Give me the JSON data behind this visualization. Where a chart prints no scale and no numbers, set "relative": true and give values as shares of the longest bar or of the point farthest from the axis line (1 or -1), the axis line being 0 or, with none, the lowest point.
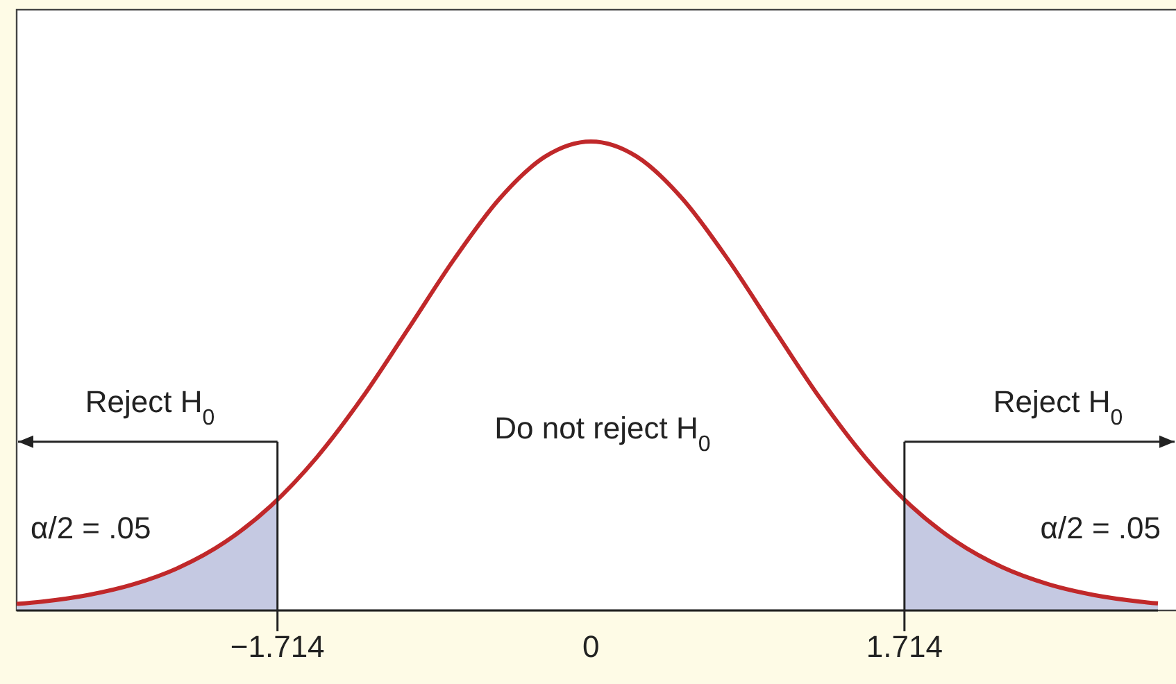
{
  "chart_data": {
    "type": "line",
    "relative": true,
    "marker": "none",
    "line_style": "solid",
    "xlim": [
      -3.14,
      3.1
    ],
    "xticks": [
      {
        "value": -1.714,
        "label": "−1.714"
      },
      0,
      1.714
    ],
    "series": [
      {
        "type": "area",
        "color": "#c5c9e2",
        "x": [
          -3.14,
          -3,
          -2.75,
          -2.5,
          -2.25,
          -2,
          -1.75,
          -1.714
        ],
        "values": [
          0.014,
          0.019,
          0.033,
          0.056,
          0.092,
          0.146,
          0.223,
          0.236
        ]
      },
      {
        "type": "area",
        "color": "#c5c9e2",
        "x": [
          1.714,
          1.75,
          2,
          2.25,
          2.5,
          2.75,
          3,
          3.1
        ],
        "values": [
          0.236,
          0.223,
          0.146,
          0.092,
          0.056,
          0.033,
          0.019,
          0.015
        ]
      },
      {
        "color": "#c0282a",
        "x": [
          -3.14,
          -3,
          -2.75,
          -2.5,
          -2.25,
          -2,
          -1.75,
          -1.5,
          -1.25,
          -1,
          -0.75,
          -0.5,
          -0.25,
          0,
          0.25,
          0.5,
          0.75,
          1,
          1.25,
          1.5,
          1.75,
          2,
          2.25,
          2.5,
          2.75,
          3,
          3.1
        ],
        "values": [
          0.014,
          0.019,
          0.033,
          0.056,
          0.092,
          0.146,
          0.223,
          0.326,
          0.454,
          0.6,
          0.748,
          0.878,
          0.968,
          1,
          0.968,
          0.878,
          0.748,
          0.6,
          0.454,
          0.326,
          0.223,
          0.146,
          0.092,
          0.056,
          0.033,
          0.019,
          0.015
        ]
      }
    ],
    "ref_lines": [
      {
        "axis": "x",
        "value": -1.714,
        "color": "#222222"
      },
      {
        "axis": "x",
        "value": 1.714,
        "color": "#222222"
      }
    ],
    "annotations": [
      "Reject H$_{0}$",
      "Do not reject H$_{0}$",
      "Reject H$_{0}$",
      "α/2 = .05",
      "α/2 = .05"
    ]
  }
}
